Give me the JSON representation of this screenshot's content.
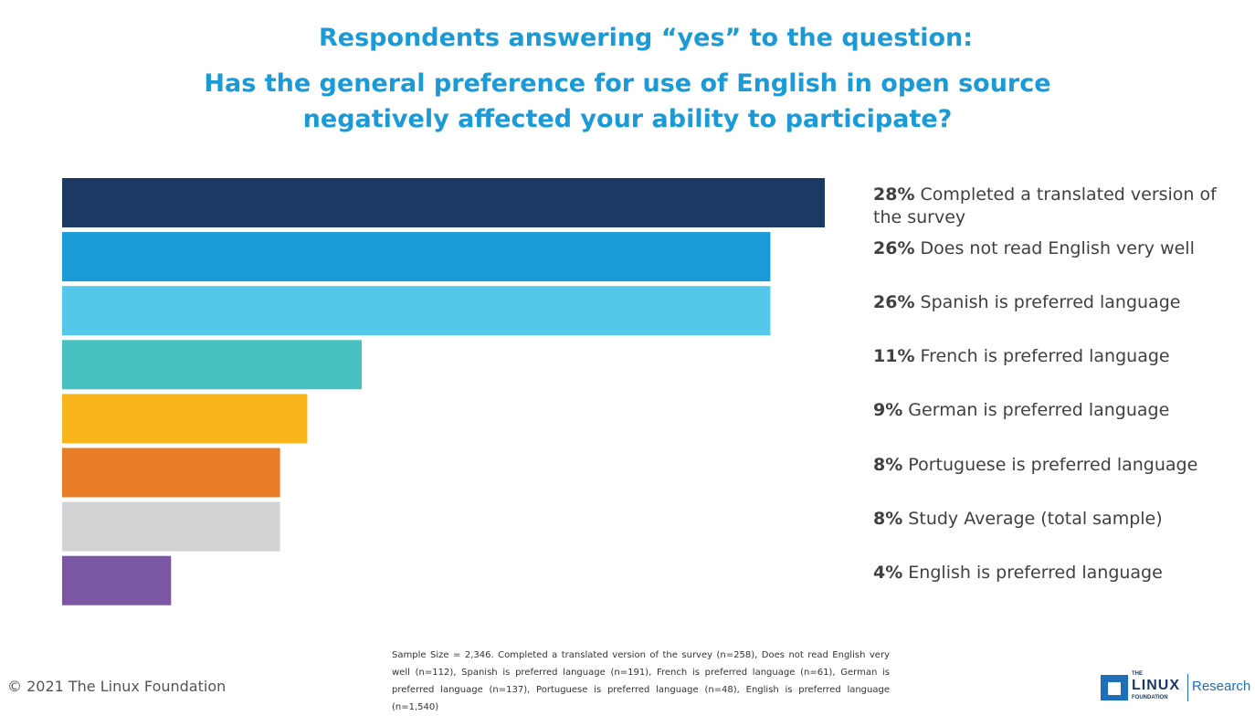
{
  "title_line1": "Respondents answering “yes” to the question:",
  "title_line2": "Has the general preference for use of English in open source negatively affected your ability to participate?",
  "chart_data": {
    "type": "bar",
    "orientation": "horizontal",
    "categories": [
      "Completed a translated version of the survey",
      "Does not read English very well",
      "Spanish is preferred language",
      "French is preferred language",
      "German is preferred language",
      "Portuguese is preferred language",
      "Study Average (total sample)",
      "English is preferred language"
    ],
    "values": [
      28,
      26,
      26,
      11,
      9,
      8,
      8,
      4
    ],
    "value_labels": [
      "28%",
      "26%",
      "26%",
      "11%",
      "9%",
      "8%",
      "8%",
      "4%"
    ],
    "colors": [
      "#1b3a63",
      "#1a9ad6",
      "#54c8ea",
      "#47c1bf",
      "#f9b51b",
      "#e97c27",
      "#d1d3d4",
      "#7a56a3"
    ],
    "xlim": [
      0,
      28
    ],
    "grid": false,
    "legend": "none"
  },
  "footnote": "Sample Size = 2,346. Completed a translated version of the survey (n=258), Does not read English very well (n=112),  Spanish is preferred language (n=191), French is preferred language (n=61), German is preferred language (n=137), Portuguese is preferred language (n=48), English is preferred language (n=1,540)",
  "copyright": "© 2021 The Linux Foundation",
  "logo": {
    "the": "THE",
    "linux": "LINUX",
    "foundation": "FOUNDATION",
    "research": "Research"
  }
}
